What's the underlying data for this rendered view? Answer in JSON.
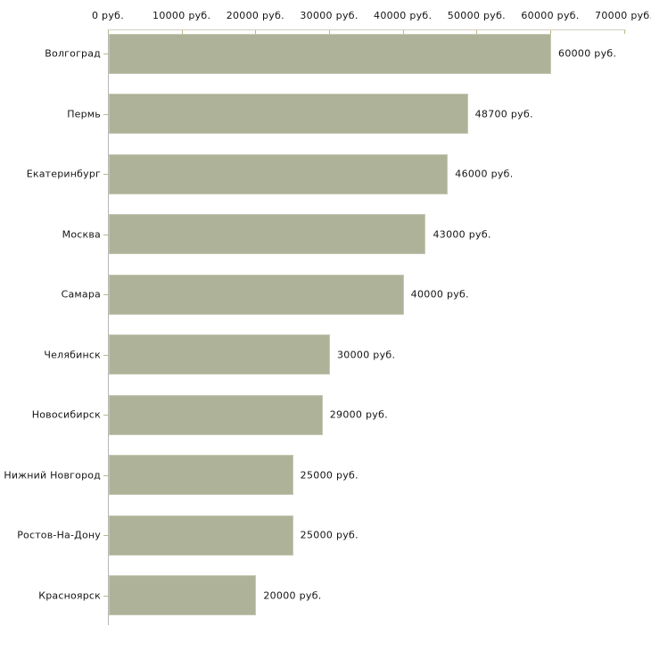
{
  "chart_data": {
    "type": "bar",
    "orientation": "horizontal",
    "title": "",
    "xlabel": "",
    "ylabel": "",
    "categories": [
      "Волгоград",
      "Пермь",
      "Екатеринбург",
      "Москва",
      "Самара",
      "Челябинск",
      "Новосибирск",
      "Нижний Новгород",
      "Ростов-На-Дону",
      "Красноярск"
    ],
    "values": [
      60000,
      48700,
      46000,
      43000,
      40000,
      30000,
      29000,
      25000,
      25000,
      20000
    ],
    "value_labels": [
      "60000 руб.",
      "48700 руб.",
      "46000 руб.",
      "43000 руб.",
      "40000 руб.",
      "30000 руб.",
      "29000 руб.",
      "25000 руб.",
      "25000 руб.",
      "20000 руб."
    ],
    "x_ticks": [
      0,
      10000,
      20000,
      30000,
      40000,
      50000,
      60000,
      70000
    ],
    "x_tick_labels": [
      "0 руб.",
      "10000 руб.",
      "20000 руб.",
      "30000 руб.",
      "40000 руб.",
      "50000 руб.",
      "60000 руб.",
      "70000 руб."
    ],
    "xlim": [
      0,
      70000
    ],
    "grid": false,
    "legend": null,
    "colors": {
      "bar_fill": "#adb299",
      "bar_border": "#c5c8b2",
      "h_axis_line": "#d2cfc0",
      "v_axis_line": "#b7b7b7",
      "tick_mark": "#b8b98a",
      "text": "#141414"
    }
  }
}
